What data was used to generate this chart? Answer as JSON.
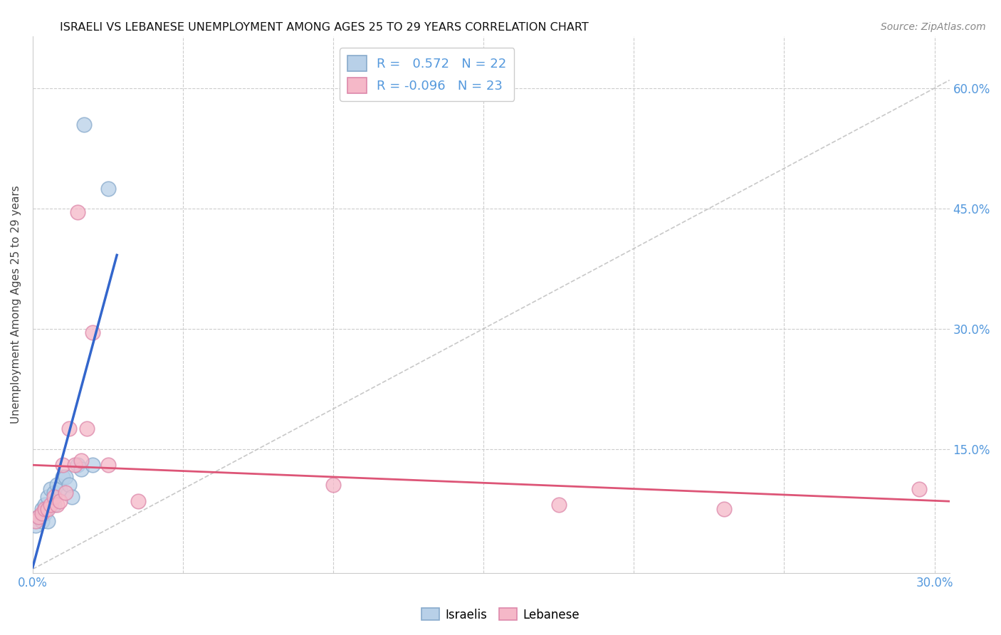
{
  "title": "ISRAELI VS LEBANESE UNEMPLOYMENT AMONG AGES 25 TO 29 YEARS CORRELATION CHART",
  "source": "Source: ZipAtlas.com",
  "ylabel": "Unemployment Among Ages 25 to 29 years",
  "xlim": [
    0.0,
    0.305
  ],
  "ylim": [
    -0.005,
    0.665
  ],
  "xticks": [
    0.0,
    0.05,
    0.1,
    0.15,
    0.2,
    0.25,
    0.3
  ],
  "yticks": [
    0.0,
    0.15,
    0.3,
    0.45,
    0.6
  ],
  "israeli_r": "0.572",
  "israeli_n": "22",
  "lebanese_r": "-0.096",
  "lebanese_n": "23",
  "israeli_color": "#b8d0e8",
  "lebanese_color": "#f5b8c8",
  "israeli_line_color": "#3366cc",
  "lebanese_line_color": "#dd5577",
  "background_color": "#ffffff",
  "grid_color": "#cccccc",
  "tick_color": "#5599dd",
  "title_color": "#111111",
  "ylabel_color": "#444444",
  "source_color": "#888888",
  "israeli_x": [
    0.001,
    0.002,
    0.003,
    0.003,
    0.004,
    0.004,
    0.005,
    0.005,
    0.006,
    0.007,
    0.007,
    0.008,
    0.009,
    0.01,
    0.011,
    0.012,
    0.013,
    0.015,
    0.016,
    0.017,
    0.02,
    0.025
  ],
  "israeli_y": [
    0.055,
    0.065,
    0.06,
    0.075,
    0.08,
    0.07,
    0.09,
    0.06,
    0.1,
    0.08,
    0.095,
    0.105,
    0.1,
    0.115,
    0.115,
    0.105,
    0.09,
    0.13,
    0.125,
    0.555,
    0.13,
    0.475
  ],
  "lebanese_x": [
    0.001,
    0.002,
    0.003,
    0.004,
    0.005,
    0.006,
    0.007,
    0.008,
    0.009,
    0.01,
    0.011,
    0.012,
    0.014,
    0.015,
    0.016,
    0.018,
    0.02,
    0.025,
    0.035,
    0.1,
    0.175,
    0.23,
    0.295
  ],
  "lebanese_y": [
    0.06,
    0.065,
    0.07,
    0.075,
    0.075,
    0.08,
    0.09,
    0.08,
    0.085,
    0.13,
    0.095,
    0.175,
    0.13,
    0.445,
    0.135,
    0.175,
    0.295,
    0.13,
    0.085,
    0.105,
    0.08,
    0.075,
    0.1
  ]
}
